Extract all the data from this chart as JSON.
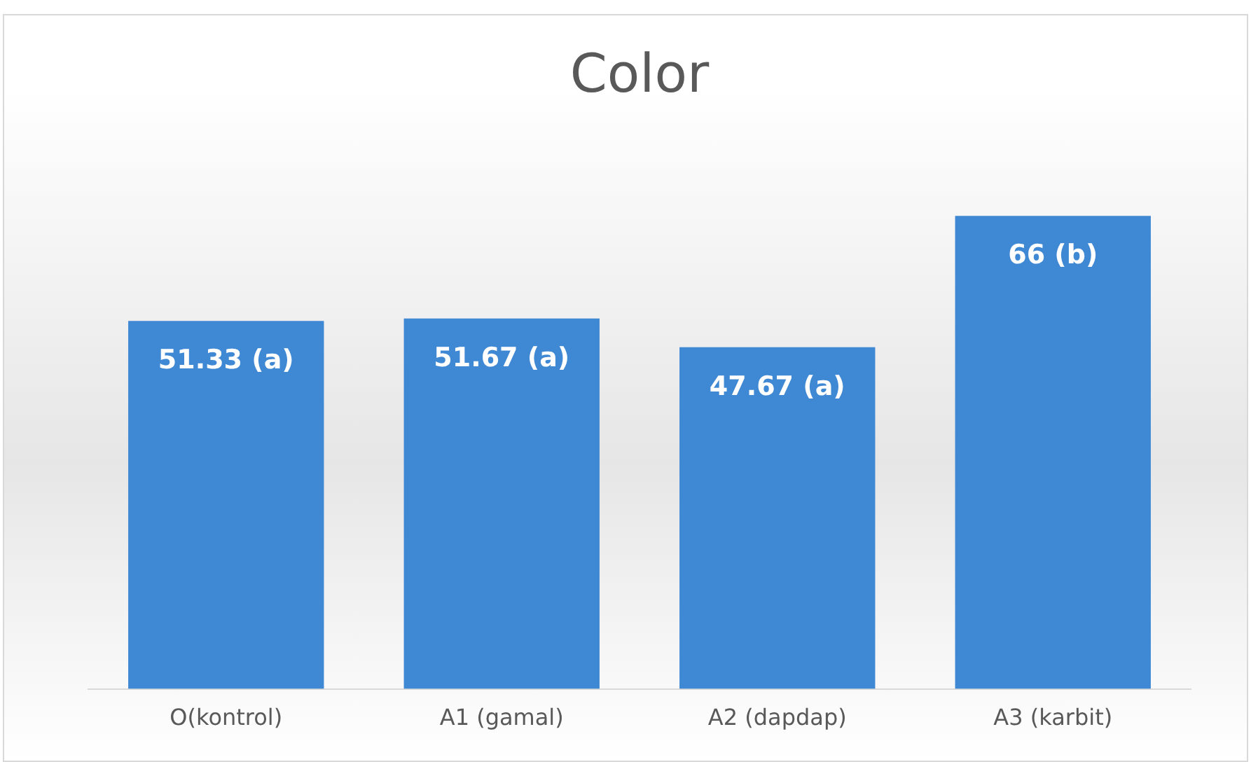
{
  "chart_data": {
    "type": "bar",
    "title": "Color",
    "categories": [
      "O(kontrol)",
      "A1 (gamal)",
      "A2 (dapdap)",
      "A3 (karbit)"
    ],
    "values": [
      51.33,
      51.67,
      47.67,
      66
    ],
    "value_labels": [
      "51.33 (a)",
      "51.67 (a)",
      "47.67 (a)",
      "66 (b)"
    ],
    "color": "#3f88d4",
    "grid": false,
    "legend": false
  }
}
